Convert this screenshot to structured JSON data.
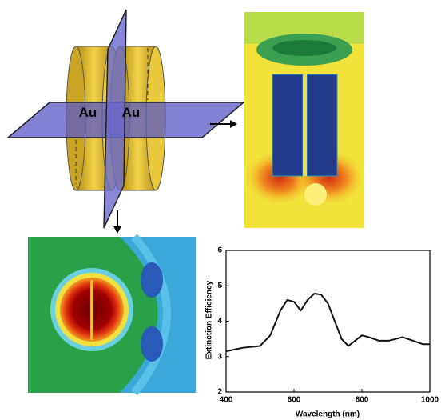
{
  "labels": [
    "Au",
    "Au"
  ],
  "chart_data": {
    "type": "line",
    "x_label": "Wavelength (nm)",
    "y_label": "Extinction Efficiency",
    "xlim": [
      400,
      1000
    ],
    "xticks": [
      400,
      600,
      800,
      1000
    ],
    "ylim": [
      2,
      6
    ],
    "yticks": [
      2,
      3,
      4,
      5,
      6
    ],
    "x": [
      400,
      450,
      500,
      530,
      560,
      580,
      600,
      620,
      640,
      660,
      680,
      700,
      720,
      740,
      760,
      780,
      800,
      820,
      850,
      880,
      920,
      950,
      980,
      1000
    ],
    "series": [
      {
        "color": "#111111",
        "values": [
          3.15,
          3.25,
          3.3,
          3.6,
          4.3,
          4.6,
          4.55,
          4.3,
          4.6,
          4.78,
          4.75,
          4.5,
          4.0,
          3.5,
          3.3,
          3.45,
          3.6,
          3.55,
          3.45,
          3.45,
          3.55,
          3.45,
          3.35,
          3.35
        ]
      }
    ]
  }
}
